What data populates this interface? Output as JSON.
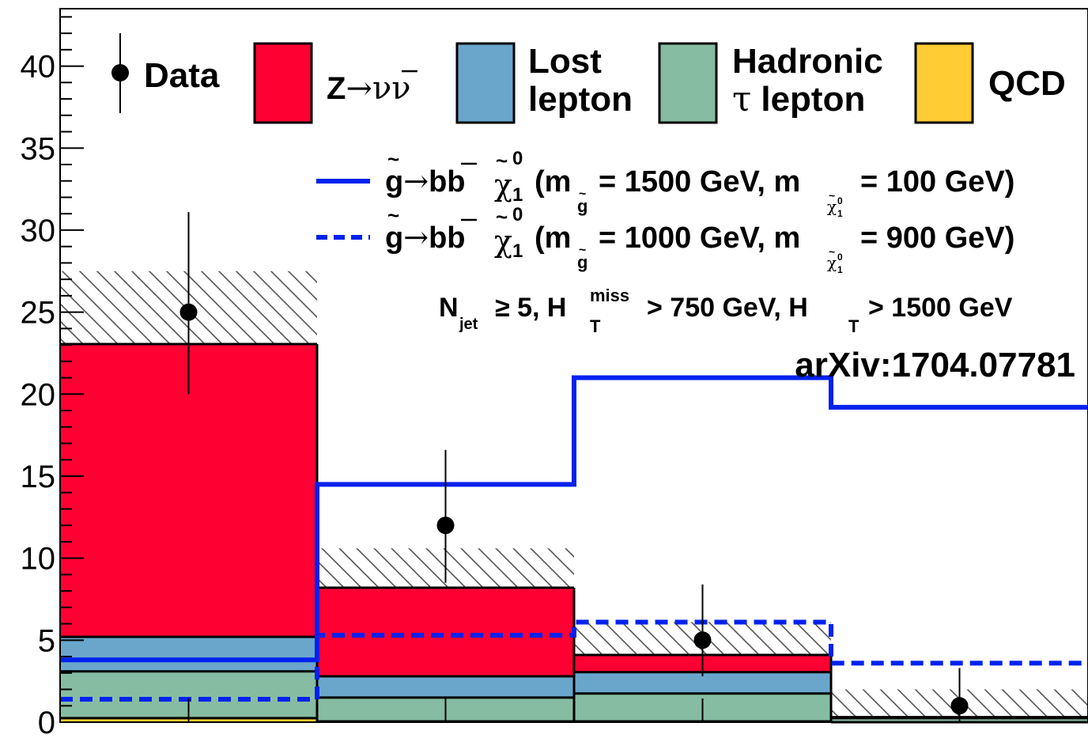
{
  "chart_data": {
    "type": "bar",
    "stacked": true,
    "bins": 4,
    "ylim": [
      0,
      43.5
    ],
    "yticks": [
      0,
      5,
      10,
      15,
      20,
      25,
      30,
      35,
      40
    ],
    "ytick_labels": [
      "0",
      "5",
      "10",
      "15",
      "20",
      "25",
      "30",
      "35",
      "40"
    ],
    "legend_position": "top",
    "series": [
      {
        "name": "QCD",
        "color": "#ffcc33",
        "values": [
          0.25,
          0.05,
          0.05,
          0.0
        ]
      },
      {
        "name": "Hadronic τ lepton",
        "color": "#86bda2",
        "values": [
          2.85,
          1.45,
          1.7,
          0.25
        ]
      },
      {
        "name": "Lost lepton",
        "color": "#6aa6cc",
        "values": [
          2.1,
          1.3,
          1.3,
          0.05
        ]
      },
      {
        "name": "Z→νν̄",
        "color": "#ff0033",
        "values": [
          17.85,
          5.4,
          1.05,
          0.0
        ]
      }
    ],
    "uncertainty_band": {
      "low": [
        18.3,
        6.2,
        1.4,
        0.0
      ],
      "high": [
        27.5,
        10.6,
        6.1,
        2.0
      ]
    },
    "data_points": {
      "name": "Data",
      "values": [
        25,
        12,
        5,
        1
      ],
      "err_low": [
        5,
        3.5,
        2.2,
        1
      ],
      "err_high": [
        6.1,
        4.6,
        3.4,
        2.3
      ]
    },
    "signals": [
      {
        "label": "g̃→bb̄ χ̃₁⁰ (m_g̃ = 1500 GeV, m_χ̃₁⁰ = 100 GeV)",
        "style": "solid",
        "color": "#0022ee",
        "values": [
          3.8,
          14.5,
          21.0,
          19.2
        ]
      },
      {
        "label": "g̃→bb̄ χ̃₁⁰ (m_g̃ = 1000 GeV, m_χ̃₁⁰ = 900 GeV)",
        "style": "dashed",
        "color": "#0022ee",
        "values": [
          1.4,
          5.3,
          6.1,
          3.6
        ]
      }
    ]
  },
  "legend": {
    "data": "Data",
    "znunu_prefix": "Z",
    "znunu_arrow": "→",
    "znunu_nu": "νν",
    "lost1": "Lost",
    "lost2": "lepton",
    "had1": "Hadronic",
    "had_tau": "τ",
    "had2": "lepton",
    "qcd": "QCD"
  },
  "signal_text": {
    "gluino": "g",
    "tilde": "~",
    "arrow": "→",
    "bb": "bb",
    "chi": "χ",
    "chi_sup": "0",
    "chi_sub": "1",
    "open_m": "(m",
    "sub_g": "g",
    "sig1_mid": "= 1500 GeV, m",
    "sig1_end": "= 100 GeV)",
    "sig2_mid": "= 1000 GeV, m",
    "sig2_end": "= 900 GeV)"
  },
  "selection_text": {
    "n": "N",
    "n_sub": "jet",
    "geq": "≥ 5, H",
    "ht_sup": "miss",
    "ht_sub": "T",
    "mid": "> 750 GeV, H",
    "ht2_sub": "T",
    "end": "> 1500 GeV"
  },
  "arxiv": "arXiv:1704.07781"
}
